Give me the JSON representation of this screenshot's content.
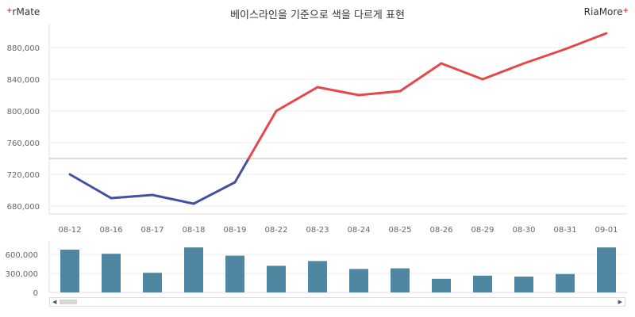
{
  "brand_left": "rMate",
  "brand_right": "RiaMore",
  "brand_mark": "+",
  "colors": {
    "above_baseline": "#e64848",
    "below_baseline": "#4550a2",
    "baseline": "#bbbbbb",
    "volume_bar": "#4f86a2",
    "grid": "#eeeeee"
  },
  "chart_data": [
    {
      "type": "line",
      "title": "베이스라인을 기준으로 색을 다르게 표현",
      "categories": [
        "08-12",
        "08-16",
        "08-17",
        "08-18",
        "08-19",
        "08-22",
        "08-23",
        "08-24",
        "08-25",
        "08-26",
        "08-29",
        "08-30",
        "08-31",
        "09-01"
      ],
      "values": [
        720000,
        690000,
        694000,
        683000,
        710000,
        800000,
        830000,
        820000,
        825000,
        860000,
        840000,
        860000,
        878000,
        898000
      ],
      "baseline": 740000,
      "ylim": [
        670000,
        900000
      ],
      "yticks": [
        680000,
        720000,
        760000,
        800000,
        840000,
        880000
      ],
      "ytick_labels": [
        "680,000",
        "720,000",
        "760,000",
        "800,000",
        "840,000",
        "880,000"
      ],
      "grid": true
    },
    {
      "type": "bar",
      "categories": [
        "08-12",
        "08-16",
        "08-17",
        "08-18",
        "08-19",
        "08-22",
        "08-23",
        "08-24",
        "08-25",
        "08-26",
        "08-29",
        "08-30",
        "08-31",
        "09-01"
      ],
      "values": [
        675000,
        610000,
        310000,
        710000,
        580000,
        420000,
        495000,
        370000,
        380000,
        215000,
        265000,
        250000,
        290000,
        710000
      ],
      "ylim": [
        0,
        750000
      ],
      "yticks": [
        0,
        300000,
        600000
      ],
      "ytick_labels": [
        "0",
        "300,000",
        "600,000"
      ]
    }
  ]
}
